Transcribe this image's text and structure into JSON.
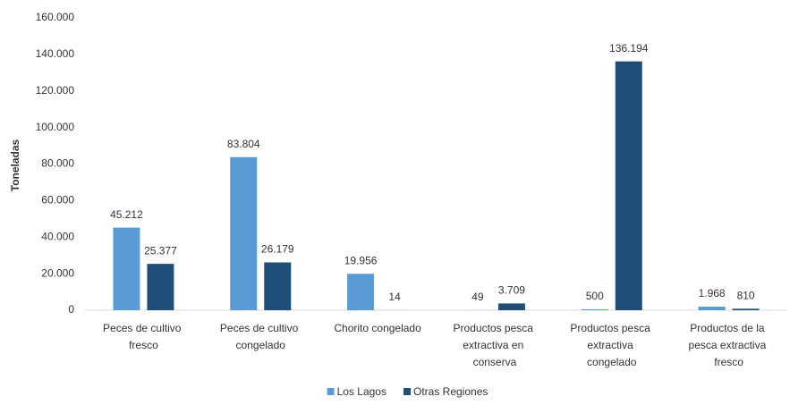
{
  "chart_data": {
    "type": "bar",
    "y_label": "Toneladas",
    "categories": [
      "Peces de cultivo fresco",
      "Peces de cultivo congelado",
      "Chorito congelado",
      "Productos pesca extractiva en conserva",
      "Productos pesca extractiva congelado",
      "Productos de la pesca extractiva fresco"
    ],
    "series": [
      {
        "name": "Los Lagos",
        "color": "#5b9bd5",
        "values": [
          45212,
          83804,
          19956,
          49,
          500,
          1968
        ],
        "value_labels": [
          "45.212",
          "83.804",
          "19.956",
          "49",
          "500",
          "1.968"
        ]
      },
      {
        "name": "Otras Regiones",
        "color": "#1f4e79",
        "values": [
          25377,
          26179,
          14,
          3709,
          136194,
          810
        ],
        "value_labels": [
          "25.377",
          "26.179",
          "14",
          "3.709",
          "136.194",
          "810"
        ]
      }
    ],
    "ylim": [
      0,
      160000
    ],
    "yticks": [
      0,
      {
        "value": 20000,
        "label": "20.000"
      },
      {
        "value": 40000,
        "label": "40.000"
      },
      {
        "value": 60000,
        "label": "60.000"
      },
      {
        "value": 80000,
        "label": "80.000"
      },
      {
        "value": 100000,
        "label": "100.000"
      },
      {
        "value": 120000,
        "label": "120.000"
      },
      {
        "value": 140000,
        "label": "140.000"
      },
      {
        "value": 160000,
        "label": "160.000"
      }
    ],
    "legend": "bottom"
  }
}
